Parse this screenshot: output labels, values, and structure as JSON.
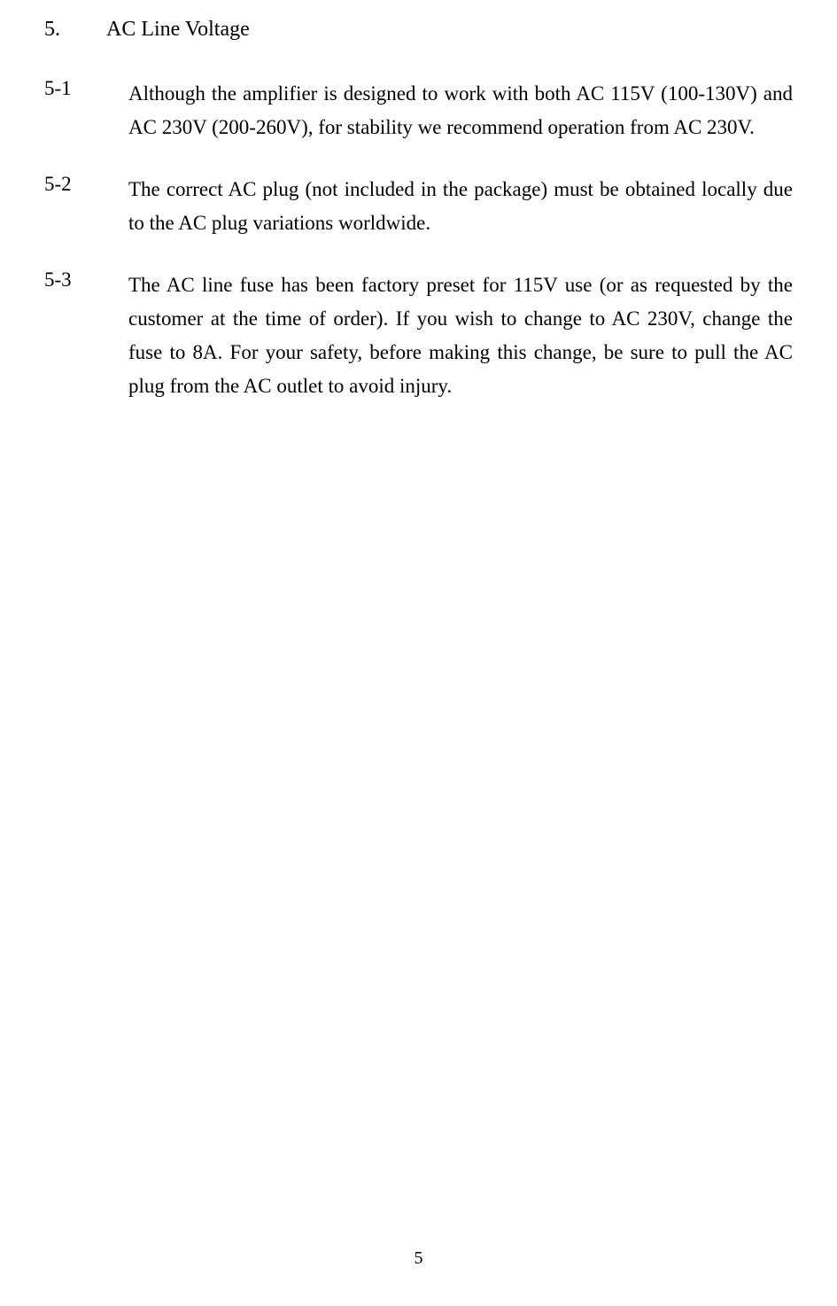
{
  "section": {
    "number": "5.",
    "title": "AC Line Voltage"
  },
  "subsections": [
    {
      "number": "5-1",
      "text": "Although the amplifier is designed to work with both AC 115V (100-130V) and AC 230V (200-260V), for stability we recommend operation from AC 230V."
    },
    {
      "number": "5-2",
      "text": "The correct AC plug (not included in the package) must be obtained locally due to the AC plug variations worldwide."
    },
    {
      "number": "5-3",
      "text": "The AC line fuse has been factory preset for 115V use (or as requested by the customer at the time of order). If you wish to change to AC 230V, change the fuse to 8A. For your safety, before making this change, be sure to pull the AC plug from the AC outlet to avoid injury."
    }
  ],
  "pageNumber": "5"
}
